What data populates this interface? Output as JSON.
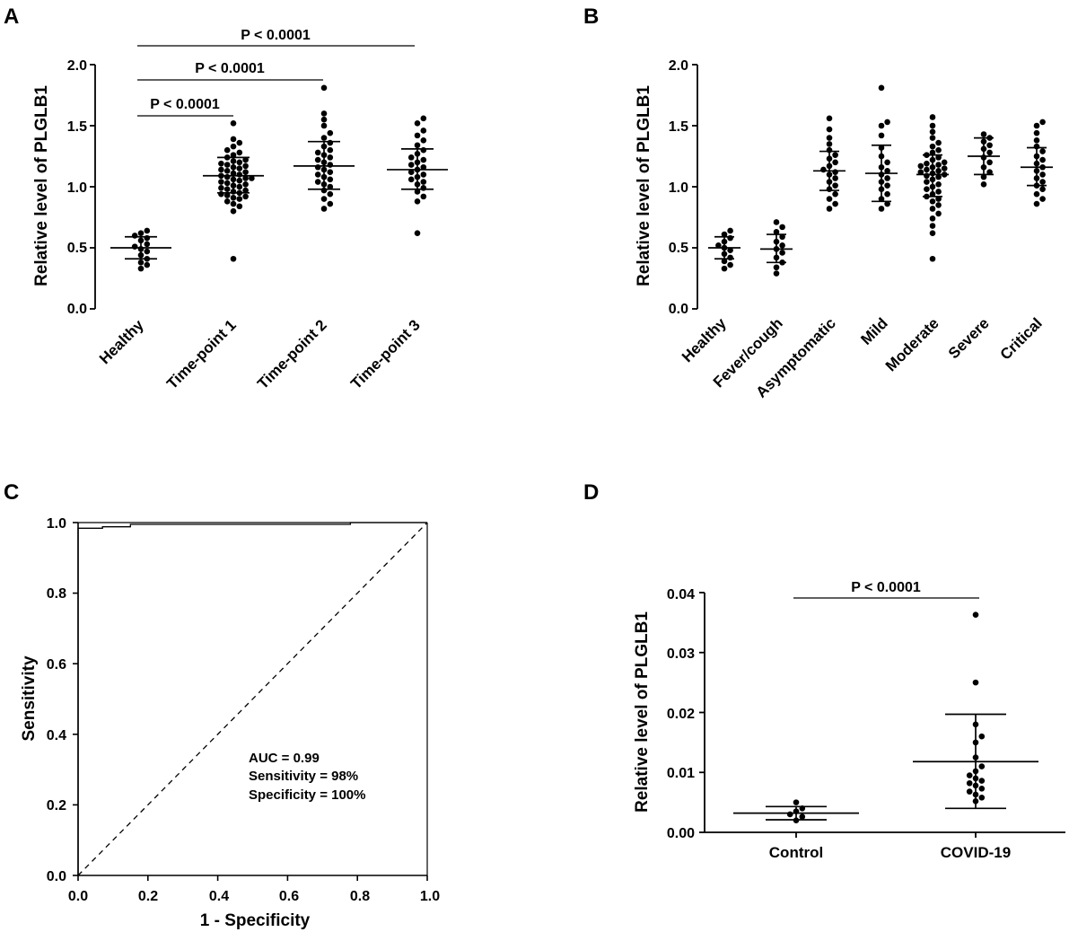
{
  "panels": [
    {
      "letter": "A",
      "chart_data": {
        "type": "scatter",
        "subtype": "dot-plot-mean-sd",
        "ylabel": "Relative level of PLGLB1",
        "ylim": [
          0,
          2.0
        ],
        "yticks": [
          "0.0",
          "0.5",
          "1.0",
          "1.5",
          "2.0"
        ],
        "categories": [
          "Healthy",
          "Time-point 1",
          "Time-point 2",
          "Time-point 3"
        ],
        "groups": [
          {
            "name": "Healthy",
            "mean": 0.5,
            "sd_low": 0.41,
            "sd_high": 0.59,
            "points": [
              0.33,
              0.36,
              0.38,
              0.41,
              0.44,
              0.47,
              0.49,
              0.51,
              0.53,
              0.56,
              0.58,
              0.6,
              0.62,
              0.64
            ]
          },
          {
            "name": "Time-point 1",
            "mean": 1.09,
            "sd_low": 0.95,
            "sd_high": 1.24,
            "points": [
              0.41,
              0.8,
              0.84,
              0.86,
              0.88,
              0.9,
              0.91,
              0.92,
              0.93,
              0.94,
              0.95,
              0.96,
              0.97,
              0.98,
              0.99,
              1.0,
              1.01,
              1.02,
              1.03,
              1.04,
              1.05,
              1.06,
              1.07,
              1.07,
              1.08,
              1.09,
              1.1,
              1.11,
              1.12,
              1.13,
              1.14,
              1.15,
              1.16,
              1.17,
              1.18,
              1.19,
              1.2,
              1.21,
              1.22,
              1.24,
              1.26,
              1.28,
              1.3,
              1.33,
              1.36,
              1.39,
              1.52
            ]
          },
          {
            "name": "Time-point 2",
            "mean": 1.17,
            "sd_low": 0.98,
            "sd_high": 1.37,
            "points": [
              0.82,
              0.86,
              0.9,
              0.94,
              0.97,
              1.0,
              1.02,
              1.04,
              1.06,
              1.08,
              1.1,
              1.12,
              1.14,
              1.16,
              1.18,
              1.2,
              1.22,
              1.24,
              1.26,
              1.28,
              1.3,
              1.33,
              1.36,
              1.4,
              1.44,
              1.5,
              1.55,
              1.6,
              1.81
            ]
          },
          {
            "name": "Time-point 3",
            "mean": 1.14,
            "sd_low": 0.98,
            "sd_high": 1.31,
            "points": [
              0.62,
              0.88,
              0.92,
              0.96,
              0.99,
              1.02,
              1.04,
              1.06,
              1.08,
              1.1,
              1.12,
              1.14,
              1.16,
              1.18,
              1.2,
              1.22,
              1.24,
              1.27,
              1.3,
              1.34,
              1.38,
              1.42,
              1.46,
              1.52,
              1.56
            ]
          }
        ],
        "significance": [
          {
            "label": "P < 0.0001",
            "from": "Healthy",
            "to": "Time-point 1",
            "level": 2.0
          },
          {
            "label": "P < 0.0001",
            "from": "Healthy",
            "to": "Time-point 2",
            "level": 2.66
          },
          {
            "label": "P < 0.0001",
            "from": "Healthy",
            "to": "Time-point 3",
            "level": 3.02
          }
        ]
      }
    },
    {
      "letter": "B",
      "chart_data": {
        "type": "scatter",
        "subtype": "dot-plot-mean-sd",
        "ylabel": "Relative level of PLGLB1",
        "ylim": [
          0,
          2.0
        ],
        "yticks": [
          "0.0",
          "0.5",
          "1.0",
          "1.5",
          "2.0"
        ],
        "categories": [
          "Healthy",
          "Fever/cough",
          "Asymptomatic",
          "Mild",
          "Moderate",
          "Severe",
          "Critical"
        ],
        "groups": [
          {
            "name": "Healthy",
            "mean": 0.5,
            "sd_low": 0.41,
            "sd_high": 0.59,
            "points": [
              0.33,
              0.36,
              0.39,
              0.42,
              0.45,
              0.48,
              0.5,
              0.52,
              0.55,
              0.58,
              0.61,
              0.64
            ]
          },
          {
            "name": "Fever/cough",
            "mean": 0.49,
            "sd_low": 0.38,
            "sd_high": 0.61,
            "points": [
              0.29,
              0.34,
              0.38,
              0.42,
              0.46,
              0.49,
              0.52,
              0.55,
              0.59,
              0.63,
              0.67,
              0.71
            ]
          },
          {
            "name": "Asymptomatic",
            "mean": 1.13,
            "sd_low": 0.97,
            "sd_high": 1.29,
            "points": [
              0.82,
              0.86,
              0.9,
              0.94,
              0.98,
              1.01,
              1.04,
              1.07,
              1.1,
              1.12,
              1.14,
              1.17,
              1.2,
              1.23,
              1.26,
              1.3,
              1.35,
              1.4,
              1.47,
              1.56
            ]
          },
          {
            "name": "Mild",
            "mean": 1.11,
            "sd_low": 0.88,
            "sd_high": 1.34,
            "points": [
              0.82,
              0.86,
              0.9,
              0.94,
              0.98,
              1.01,
              1.04,
              1.07,
              1.1,
              1.13,
              1.16,
              1.2,
              1.25,
              1.32,
              1.42,
              1.5,
              1.53,
              1.81
            ]
          },
          {
            "name": "Moderate",
            "mean": 1.1,
            "sd_low": 0.92,
            "sd_high": 1.26,
            "points": [
              0.41,
              0.62,
              0.68,
              0.74,
              0.78,
              0.82,
              0.85,
              0.88,
              0.9,
              0.92,
              0.94,
              0.96,
              0.98,
              1.0,
              1.02,
              1.04,
              1.06,
              1.08,
              1.09,
              1.1,
              1.11,
              1.12,
              1.13,
              1.14,
              1.15,
              1.16,
              1.17,
              1.18,
              1.19,
              1.2,
              1.22,
              1.24,
              1.26,
              1.28,
              1.3,
              1.33,
              1.36,
              1.4,
              1.45,
              1.5,
              1.57
            ]
          },
          {
            "name": "Severe",
            "mean": 1.25,
            "sd_low": 1.1,
            "sd_high": 1.4,
            "points": [
              1.02,
              1.08,
              1.12,
              1.16,
              1.2,
              1.24,
              1.28,
              1.31,
              1.34,
              1.37,
              1.4,
              1.43
            ]
          },
          {
            "name": "Critical",
            "mean": 1.16,
            "sd_low": 1.01,
            "sd_high": 1.32,
            "points": [
              0.86,
              0.9,
              0.94,
              0.98,
              1.01,
              1.04,
              1.07,
              1.1,
              1.13,
              1.16,
              1.19,
              1.22,
              1.25,
              1.29,
              1.33,
              1.38,
              1.44,
              1.5,
              1.53
            ]
          }
        ]
      }
    },
    {
      "letter": "C",
      "chart_data": {
        "type": "line",
        "subtype": "roc-curve",
        "xlabel": "1 - Specificity",
        "ylabel": "Sensitivity",
        "xlim": [
          0,
          1.0
        ],
        "ylim": [
          0,
          1.0
        ],
        "xticks": [
          "0.0",
          "0.2",
          "0.4",
          "0.6",
          "0.8",
          "1.0"
        ],
        "yticks": [
          "0.0",
          "0.2",
          "0.4",
          "0.6",
          "0.8",
          "1.0"
        ],
        "series": [
          {
            "name": "ROC",
            "x": [
              0,
              0,
              0.07,
              0.07,
              0.15,
              0.15,
              0.78,
              0.78,
              1.0
            ],
            "y": [
              0,
              0.984,
              0.984,
              0.988,
              0.988,
              0.995,
              0.995,
              1.0,
              1.0
            ]
          },
          {
            "name": "reference",
            "style": "dashed",
            "x": [
              0,
              1.0
            ],
            "y": [
              0,
              1.0
            ]
          }
        ],
        "annotations": [
          "AUC = 0.99",
          "Sensitivity = 98%",
          "Specificity = 100%"
        ]
      }
    },
    {
      "letter": "D",
      "chart_data": {
        "type": "scatter",
        "subtype": "dot-plot-mean-sd",
        "ylabel": "Relative level of PLGLB1",
        "ylim": [
          0,
          0.04
        ],
        "yticks": [
          "0.00",
          "0.01",
          "0.02",
          "0.03",
          "0.04"
        ],
        "categories": [
          "Control",
          "COVID-19"
        ],
        "groups": [
          {
            "name": "Control",
            "mean": 0.0032,
            "sd_low": 0.0021,
            "sd_high": 0.0043,
            "points": [
              0.002,
              0.0026,
              0.003,
              0.0035,
              0.004,
              0.005
            ]
          },
          {
            "name": "COVID-19",
            "mean": 0.0118,
            "sd_low": 0.004,
            "sd_high": 0.0197,
            "points": [
              0.0052,
              0.0058,
              0.0063,
              0.0068,
              0.0073,
              0.0078,
              0.0082,
              0.0086,
              0.009,
              0.0095,
              0.0102,
              0.011,
              0.0125,
              0.015,
              0.016,
              0.018,
              0.025,
              0.0363
            ]
          }
        ],
        "significance": [
          {
            "label": "P < 0.0001",
            "from": "Control",
            "to": "COVID-19",
            "level": 0.039
          }
        ]
      }
    }
  ]
}
